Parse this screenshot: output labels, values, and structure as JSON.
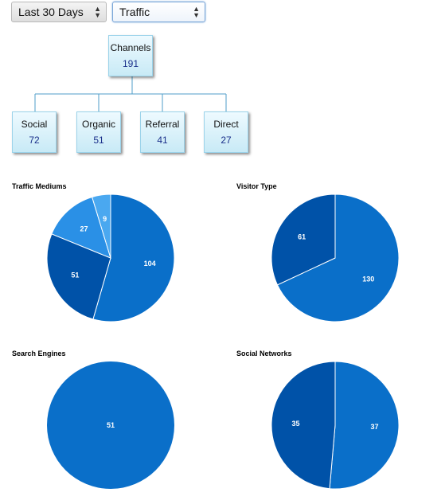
{
  "filters": {
    "range": "Last 30 Days",
    "metric": "Traffic"
  },
  "tree": {
    "root": {
      "label": "Channels",
      "value": "191"
    },
    "children": [
      {
        "label": "Social",
        "value": "72"
      },
      {
        "label": "Organic",
        "value": "51"
      },
      {
        "label": "Referral",
        "value": "41"
      },
      {
        "label": "Direct",
        "value": "27"
      }
    ]
  },
  "colors": {
    "blue": "#0a6fc9",
    "dark_blue": "#0052a8",
    "light_blue": "#2a90e6",
    "lighter_blue": "#4aa8f0",
    "node_border": "#9bd3ea",
    "node_value": "#1a2f8a"
  },
  "chart_data": [
    {
      "type": "pie",
      "title": "Traffic Mediums",
      "values": [
        104,
        51,
        27,
        9
      ],
      "labels": [
        "104",
        "51",
        "27",
        "9"
      ]
    },
    {
      "type": "pie",
      "title": "Visitor Type",
      "values": [
        130,
        61
      ],
      "labels": [
        "130",
        "61"
      ]
    },
    {
      "type": "pie",
      "title": "Search Engines",
      "values": [
        51
      ],
      "labels": [
        "51"
      ]
    },
    {
      "type": "pie",
      "title": "Social Networks",
      "values": [
        37,
        35
      ],
      "labels": [
        "37",
        "35"
      ]
    }
  ]
}
